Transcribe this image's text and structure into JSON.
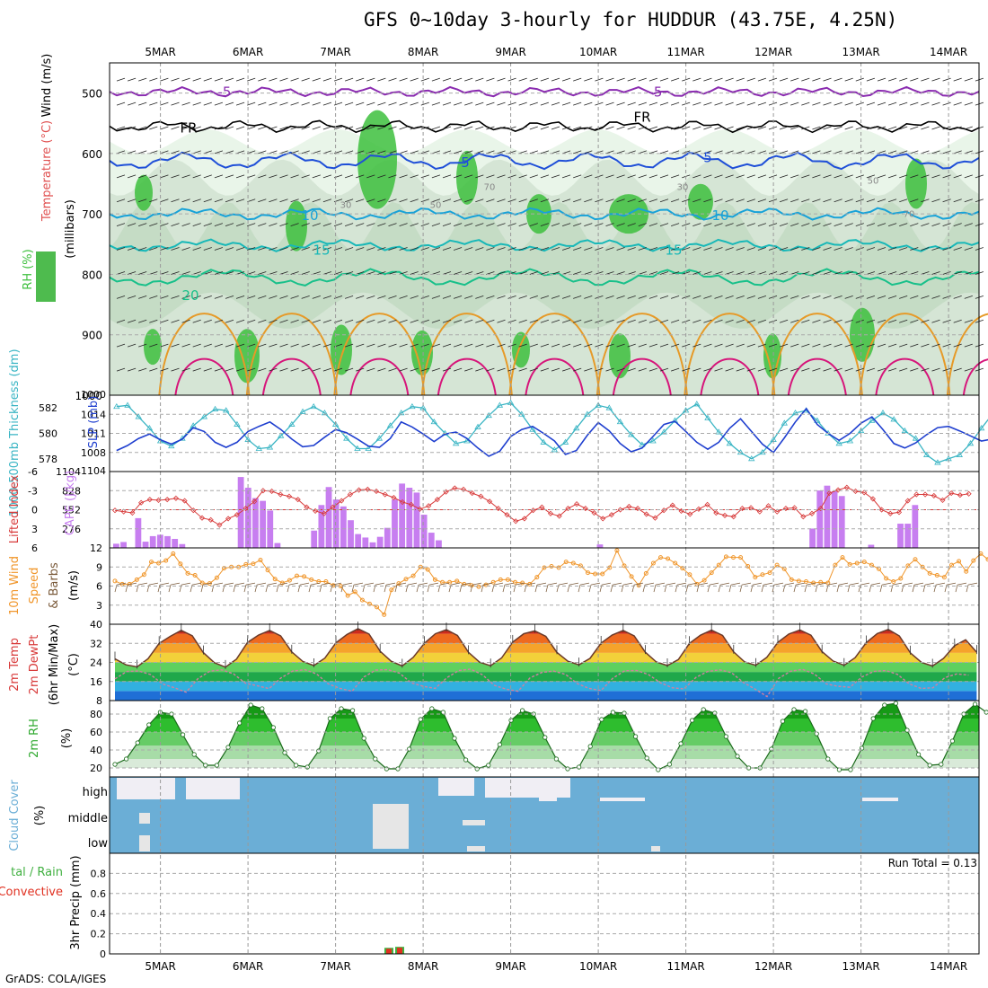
{
  "title": "GFS 0~10day 3-hourly for HUDDUR (43.75E, 4.25N)",
  "credit": "GrADS: COLA/IGES",
  "dates": [
    "5MAR",
    "6MAR",
    "7MAR",
    "8MAR",
    "9MAR",
    "10MAR",
    "11MAR",
    "12MAR",
    "13MAR",
    "14MAR"
  ],
  "colors": {
    "rh_fill": "#3dbf3d",
    "rh_light": "#e9f5e9",
    "rh_mid": "#cfe1cf",
    "temp_purple": "#8a2bb0",
    "temp_blue": "#1f4fd8",
    "temp_cyan": "#17a2d8",
    "temp_teal": "#18b8b8",
    "temp_green": "#18c08a",
    "temp_orange": "#e69a28",
    "temp_magenta": "#d6157a",
    "thickness": "#3ab5c4",
    "slp": "#1f3fcf",
    "lifted": "#d83a3a",
    "cape": "#c77ef0",
    "wind_speed": "#f0962b",
    "barb": "#7a5a3a",
    "cloud": "#6baed6",
    "clear": "#f0eef4",
    "rain": "#e03020",
    "precip_total": "#40b040"
  },
  "chart_data": [
    {
      "type": "heatmap",
      "panel": "upper-air",
      "ylabel_parts": [
        "RH (%)",
        "Temperature (°C)",
        "Wind (m/s)"
      ],
      "y_unit_label": "(millibars)",
      "y_ticks": [
        500,
        600,
        700,
        800,
        900,
        1000
      ],
      "ylim": [
        1000,
        450
      ],
      "isotherm_labels": [
        {
          "level": "-5",
          "text": "-5"
        },
        {
          "level": "FR",
          "text": "FR"
        },
        {
          "level": "5",
          "text": "5"
        },
        {
          "level": "10",
          "text": "10"
        },
        {
          "level": "15",
          "text": "15"
        },
        {
          "level": "20",
          "text": "20"
        }
      ],
      "rh_labels": [
        "30",
        "50",
        "70"
      ]
    },
    {
      "type": "line",
      "panel": "thickness-slp",
      "ylabel_left": "1000-500mb Thickness (dm)",
      "ylabel_right": "SLP (mb)",
      "left_ticks": [
        578,
        580,
        582
      ],
      "right_ticks": [
        1008,
        1011,
        1014
      ],
      "series": [
        {
          "name": "Thickness",
          "values": [
            582.1,
            582.2,
            581.3,
            580.4,
            579.4,
            579.0,
            579.6,
            580.6,
            581.3,
            581.9,
            581.8,
            580.7,
            579.5,
            578.8,
            578.9,
            579.8,
            580.7,
            581.7,
            582.1,
            581.6,
            580.7,
            579.6,
            578.8,
            578.8,
            579.6,
            580.6,
            581.6,
            582.1,
            582.0,
            580.9,
            580.0,
            579.2,
            579.4,
            580.5,
            581.4,
            582.2,
            582.4,
            581.5,
            580.3,
            579.3,
            578.7,
            579.3,
            580.4,
            581.5,
            582.2,
            582.0,
            580.9,
            579.9,
            579.1,
            579.4,
            580.1,
            581.0,
            581.8,
            582.3,
            581.2,
            580.1,
            579.2,
            578.5,
            578.0,
            578.5,
            579.5,
            580.8,
            581.6,
            581.8,
            581.0,
            580.0,
            579.2,
            579.4,
            580.2,
            581.0,
            581.6,
            581.1,
            580.2,
            579.6,
            578.3,
            577.7,
            578.0,
            578.3,
            579.2,
            580.4,
            581.5,
            582.0,
            581.0,
            580.1
          ]
        },
        {
          "name": "SLP",
          "values": [
            1008.3,
            1009.1,
            1010.2,
            1010.9,
            1010.0,
            1009.3,
            1010.1,
            1011.9,
            1011.3,
            1009.6,
            1008.8,
            1009.6,
            1011.3,
            1012.1,
            1012.8,
            1011.6,
            1010.1,
            1008.9,
            1009.1,
            1010.4,
            1011.6,
            1011.1,
            1010.1,
            1009.0,
            1008.8,
            1010.2,
            1012.8,
            1012.0,
            1010.9,
            1009.7,
            1010.9,
            1011.2,
            1010.2,
            1008.7,
            1007.4,
            1008.2,
            1010.5,
            1011.6,
            1012.1,
            1011.0,
            1009.8,
            1007.7,
            1008.3,
            1010.7,
            1012.7,
            1011.4,
            1009.4,
            1008.1,
            1008.7,
            1010.5,
            1012.4,
            1012.9,
            1011.3,
            1009.6,
            1008.5,
            1009.6,
            1011.8,
            1013.3,
            1011.3,
            1009.3,
            1008.0,
            1010.3,
            1012.8,
            1014.9,
            1012.4,
            1011.0,
            1009.9,
            1011.0,
            1012.6,
            1013.6,
            1011.6,
            1009.4,
            1008.7,
            1009.5,
            1010.8,
            1011.9,
            1012.1,
            1011.4,
            1010.6,
            1009.8,
            1010.1,
            1010.7,
            1011.9,
            1012.7
          ]
        }
      ]
    },
    {
      "type": "bar",
      "panel": "lifted-cape",
      "ylabel_left": "Lifted Index",
      "ylabel_right": "CAPE (J/kg)",
      "left_ticks": [
        -6,
        -3,
        0,
        3,
        6
      ],
      "right_ticks": [
        276,
        552,
        828,
        1104
      ],
      "series": [
        {
          "name": "Lifted Index",
          "values": [
            0.1,
            0.3,
            0.5,
            -1.1,
            -1.6,
            -1.5,
            -1.6,
            -1.8,
            -1.4,
            0.1,
            1.3,
            1.6,
            2.4,
            1.4,
            0.8,
            -0.2,
            -1.3,
            -3.0,
            -2.9,
            -2.4,
            -2.1,
            -1.6,
            -0.4,
            0.2,
            0.6,
            -0.4,
            -1.4,
            -2.4,
            -3.1,
            -3.2,
            -2.9,
            -2.4,
            -1.9,
            -1.2,
            -0.8,
            -0.1,
            -0.6,
            -1.6,
            -2.8,
            -3.4,
            -3.2,
            -2.6,
            -2.1,
            -1.3,
            -0.2,
            0.8,
            1.8,
            1.4,
            0.1,
            -0.4,
            0.6,
            1.0,
            -0.2,
            -0.9,
            -0.2,
            0.5,
            1.4,
            0.8,
            0.0,
            -0.5,
            -0.2,
            0.7,
            1.3,
            0.1,
            -0.7,
            0.2,
            0.7,
            -0.1,
            -0.8,
            0.5,
            0.9,
            1.1,
            -0.2,
            -0.3,
            0.3,
            -0.6,
            0.3,
            -0.2,
            -0.3,
            1.1,
            0.6,
            -0.2,
            -2.6,
            -3.1,
            -3.5,
            -2.9,
            -2.7,
            -1.7,
            0.0,
            0.6,
            0.4,
            -1.4,
            -2.4,
            -2.4,
            -2.2,
            -1.5,
            -2.6,
            -2.3,
            -2.5
          ]
        },
        {
          "name": "CAPE",
          "values": [
            60,
            85,
            0,
            430,
            90,
            170,
            190,
            170,
            130,
            55,
            0,
            0,
            0,
            0,
            0,
            0,
            0,
            1025,
            870,
            720,
            680,
            540,
            70,
            0,
            0,
            0,
            0,
            250,
            620,
            880,
            700,
            600,
            400,
            200,
            150,
            80,
            160,
            290,
            700,
            930,
            870,
            800,
            480,
            220,
            110,
            0,
            0,
            0,
            0,
            0,
            0,
            0,
            0,
            0,
            0,
            0,
            0,
            0,
            0,
            0,
            0,
            0,
            0,
            0,
            0,
            0,
            50,
            0,
            0,
            0,
            0,
            0,
            0,
            0,
            0,
            0,
            0,
            0,
            0,
            0,
            0,
            0,
            0,
            0,
            0,
            0,
            0,
            0,
            0,
            0,
            0,
            0,
            0,
            0,
            0,
            280,
            830,
            900,
            820,
            750,
            0,
            0,
            0,
            45,
            0,
            0,
            0,
            350,
            350,
            620
          ]
        }
      ]
    },
    {
      "type": "line",
      "panel": "10m-wind",
      "ylabel": "10m Wind Speed & Barbs (m/s)",
      "y_ticks": [
        3,
        6,
        9,
        12
      ],
      "series": [
        {
          "name": "Speed",
          "values": [
            6.8,
            6.3,
            6.3,
            7.0,
            7.8,
            9.8,
            9.6,
            10.0,
            11.1,
            9.5,
            8.0,
            7.7,
            6.5,
            6.4,
            7.3,
            8.8,
            9.0,
            9.0,
            9.4,
            9.5,
            10.1,
            8.5,
            7.1,
            6.5,
            6.9,
            7.6,
            7.5,
            7.0,
            6.7,
            6.7,
            6.1,
            6.0,
            4.5,
            5.1,
            3.8,
            3.2,
            2.7,
            1.5,
            5.4,
            6.4,
            7.1,
            7.6,
            9.0,
            8.6,
            7.0,
            6.6,
            6.6,
            6.8,
            6.3,
            6.1,
            5.9,
            6.2,
            6.6,
            7.0,
            7.0,
            6.6,
            6.5,
            6.3,
            7.4,
            8.9,
            9.1,
            8.9,
            9.8,
            9.6,
            9.2,
            8.1,
            7.9,
            7.9,
            8.9,
            11.6,
            9.2,
            7.5,
            6.1,
            8.0,
            9.6,
            10.5,
            10.3,
            9.6,
            8.8,
            7.8,
            6.3,
            6.9,
            8.1,
            9.3,
            10.6,
            10.5,
            10.5,
            9.1,
            7.4,
            7.8,
            8.1,
            9.3,
            8.7,
            7.0,
            6.8,
            6.7,
            6.5,
            6.6,
            6.5,
            9.3,
            10.5,
            9.4,
            9.6,
            9.8,
            9.3,
            8.7,
            7.2,
            6.7,
            7.2,
            9.2,
            10.2,
            9.0,
            8.0,
            7.7,
            7.4,
            9.3,
            9.9,
            8.3,
            10.0,
            11.1,
            10.2
          ]
        }
      ]
    },
    {
      "type": "area",
      "panel": "2m-temp",
      "ylabel": "2m Temp 2m DewPt (6hr Min/Max) (°C)",
      "y_ticks": [
        8,
        16,
        24,
        32,
        40
      ],
      "series": [
        {
          "name": "2m Temp",
          "values": [
            25.5,
            23.0,
            22.1,
            25.6,
            32.0,
            34.9,
            37.4,
            35.2,
            28.1,
            23.9,
            22.0,
            25.4,
            32.4,
            35.5,
            37.4,
            35.1,
            28.4,
            24.4,
            22.7,
            25.8,
            32.2,
            35.7,
            38.1,
            35.9,
            28.7,
            24.5,
            22.5,
            26.1,
            32.0,
            36.0,
            37.7,
            35.3,
            28.2,
            24.1,
            22.6,
            25.9,
            32.5,
            36.0,
            37.2,
            34.9,
            28.2,
            24.5,
            23.0,
            25.7,
            32.1,
            35.5,
            37.4,
            35.1,
            28.3,
            24.2,
            22.7,
            25.2,
            32.0,
            35.4,
            37.5,
            35.3,
            28.4,
            24.2,
            22.8,
            26.1,
            32.4,
            35.9,
            37.6,
            35.4,
            28.5,
            24.6,
            22.8,
            26.0,
            32.3,
            36.1,
            37.8,
            35.1,
            28.0,
            24.0,
            22.5,
            25.7,
            31.0,
            33.5,
            28.3
          ]
        },
        {
          "name": "2m DewPt",
          "values": [
            17.1,
            20.2,
            20.4,
            18.9,
            15.0,
            13.4,
            11.5,
            17.2,
            20.3,
            20.9,
            19.2,
            15.3,
            14.2,
            13.0,
            17.5,
            20.4,
            21.0,
            19.2,
            15.0,
            13.1,
            11.9,
            17.9,
            20.8,
            21.0,
            19.5,
            15.4,
            14.0,
            13.1,
            17.6,
            20.6,
            21.2,
            18.8,
            14.4,
            12.8,
            11.9,
            17.5,
            19.8,
            20.4,
            19.0,
            15.1,
            13.1,
            12.2,
            17.4,
            20.5,
            20.6,
            18.9,
            15.5,
            13.4,
            12.9,
            17.7,
            20.2,
            20.9,
            19.7,
            15.6,
            12.8,
            9.7,
            17.4,
            20.3,
            21.1,
            19.1,
            15.0,
            14.0,
            13.6,
            17.9,
            20.2,
            20.6,
            19.0,
            15.0,
            13.1,
            13.4,
            17.6,
            19.2,
            18.7
          ]
        }
      ]
    },
    {
      "type": "area",
      "panel": "2m-rh",
      "ylabel": "2m RH (%)",
      "y_ticks": [
        20,
        40,
        60,
        80
      ],
      "series": [
        {
          "name": "2m RH",
          "values": [
            24,
            30,
            48,
            68,
            82,
            80,
            57,
            35,
            23,
            23,
            43,
            70,
            90,
            86,
            65,
            37,
            23,
            21,
            39,
            75,
            86,
            84,
            53,
            30,
            19,
            19,
            41,
            74,
            86,
            82,
            53,
            29,
            19,
            23,
            46,
            73,
            84,
            80,
            54,
            30,
            19,
            21,
            44,
            74,
            82,
            81,
            55,
            31,
            18,
            24,
            47,
            73,
            85,
            81,
            55,
            33,
            20,
            20,
            41,
            72,
            85,
            83,
            58,
            30,
            18,
            18,
            42,
            75,
            90,
            92,
            62,
            35,
            23,
            24,
            50,
            80,
            91,
            82
          ]
        }
      ]
    },
    {
      "type": "heatmap",
      "panel": "cloud-cover",
      "ylabel": "Cloud Cover (%)",
      "levels": [
        "high",
        "middle",
        "low"
      ]
    },
    {
      "type": "bar",
      "panel": "precip",
      "ylabel": "3hr Precip (mm)",
      "legend_left": [
        "tal / Rain",
        "Convective"
      ],
      "y_ticks": [
        0,
        0.2,
        0.4,
        0.6,
        0.8
      ],
      "ylim": [
        0,
        1.0
      ],
      "run_total_label": "Run Total = 0.13",
      "series": [
        {
          "name": "Total",
          "x": [
            "7MAR 15Z",
            "7MAR 18Z"
          ],
          "values": [
            0.06,
            0.07
          ]
        }
      ]
    }
  ]
}
